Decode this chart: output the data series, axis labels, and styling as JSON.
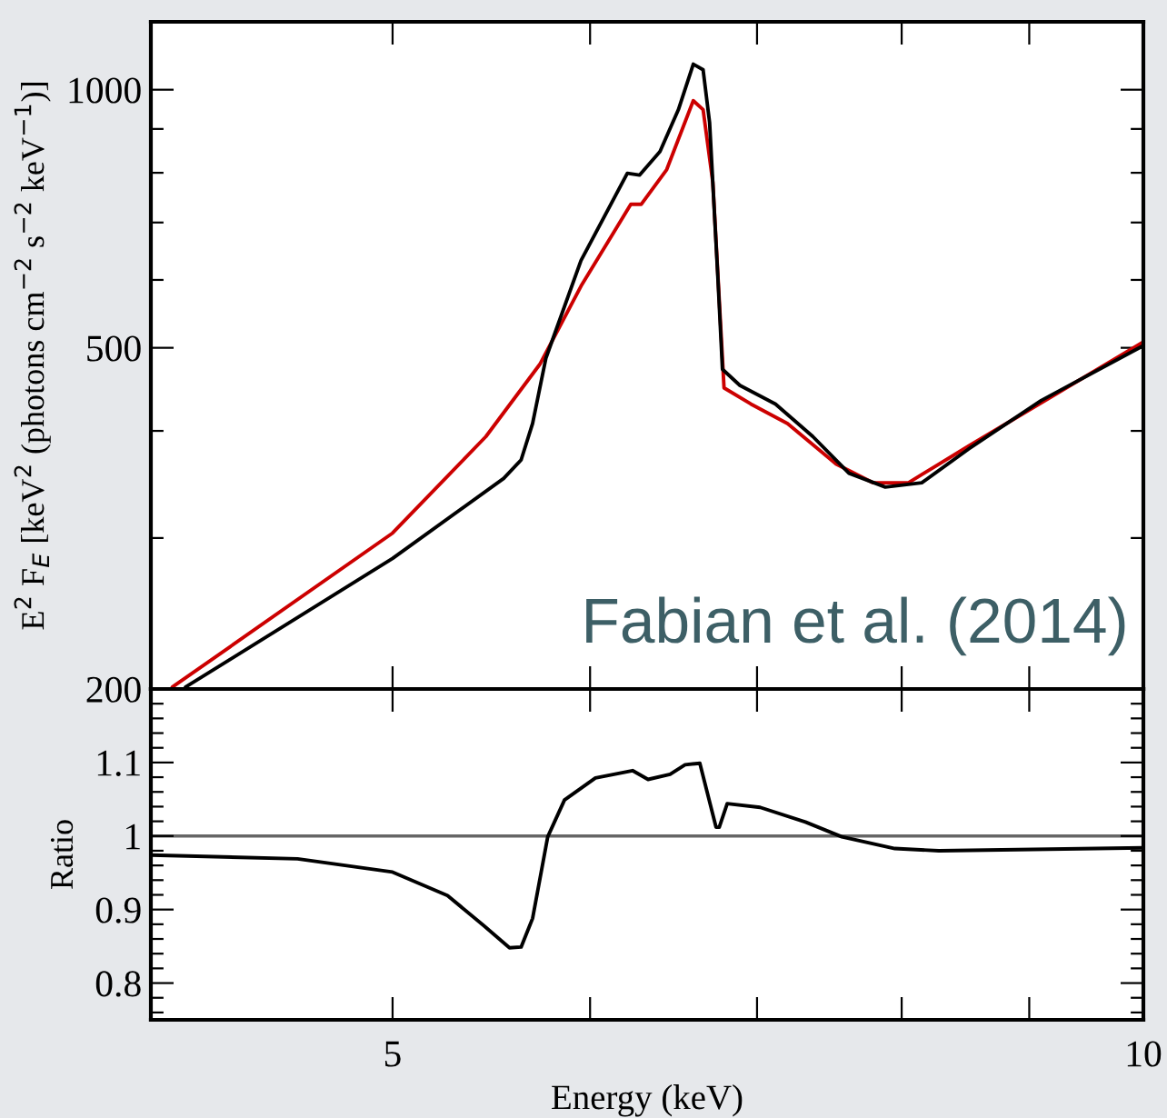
{
  "chart_data": [
    {
      "type": "line",
      "ylabel": "E$^{2}$ F$_{E}$ [keV$^{2}$ (photons cm$^{−2}$ s$^{−2}$ keV$^{−1}$)]",
      "log": "xy",
      "tick_labels": "y",
      "xlim": [
        4,
        10
      ],
      "ylim": [
        200,
        1200
      ],
      "xticks": [
        {
          "value": 5,
          "label": null
        },
        {
          "value": 6,
          "label": null
        },
        {
          "value": 7,
          "label": null
        },
        {
          "value": 8,
          "label": null
        },
        {
          "value": 9,
          "label": null
        },
        {
          "value": 10,
          "label": null
        }
      ],
      "yticks": [
        200,
        {
          "value": 300,
          "label": null
        },
        {
          "value": 400,
          "label": null
        },
        500,
        {
          "value": 600,
          "label": null
        },
        {
          "value": 700,
          "label": null
        },
        {
          "value": 800,
          "label": null
        },
        {
          "value": 900,
          "label": null
        },
        1000
      ],
      "annotations": [
        "Fabian et al. (2014)"
      ],
      "grid": false,
      "legend": false,
      "series": [
        {
          "color": "#cc0000",
          "x": [
            4.08,
            5.0,
            5.45,
            5.73,
            5.95,
            6.23,
            6.29,
            6.44,
            6.6,
            6.66,
            6.72,
            6.79,
            6.96,
            7.2,
            7.53,
            7.79,
            8.05,
            8.51,
            10
          ],
          "values": [
            201,
            304,
            394,
            479,
            590,
            735,
            735,
            807,
            971,
            948,
            780,
            449,
            430,
            408,
            366,
            348,
            348,
            384,
            508
          ]
        },
        {
          "color": "#000000",
          "x": [
            4.13,
            5.0,
            5.54,
            5.63,
            5.69,
            5.76,
            5.95,
            6.21,
            6.28,
            6.4,
            6.51,
            6.6,
            6.66,
            6.7,
            6.75,
            6.78,
            6.89,
            7.12,
            7.37,
            7.62,
            7.88,
            8.15,
            8.51,
            9.1,
            10
          ],
          "values": [
            201,
            284,
            352,
            370,
            408,
            486,
            632,
            799,
            795,
            847,
            948,
            1071,
            1055,
            916,
            611,
            472,
            452,
            430,
            394,
            357,
            344,
            348,
            381,
            434,
            503
          ]
        }
      ]
    },
    {
      "type": "line",
      "xlabel": "Energy (keV)",
      "ylabel": "Ratio",
      "log": "x",
      "xlim": [
        4,
        10
      ],
      "ylim": [
        0.75,
        1.2
      ],
      "xticks": [
        5,
        {
          "value": 6,
          "label": null
        },
        {
          "value": 7,
          "label": null
        },
        {
          "value": 8,
          "label": null
        },
        {
          "value": 9,
          "label": null
        },
        10
      ],
      "yticks": [
        {
          "value": 0.76,
          "label": null
        },
        {
          "value": 0.78,
          "label": null
        },
        0.8,
        {
          "value": 0.82,
          "label": null
        },
        {
          "value": 0.84,
          "label": null
        },
        {
          "value": 0.86,
          "label": null
        },
        {
          "value": 0.88,
          "label": null
        },
        0.9,
        {
          "value": 0.92,
          "label": null
        },
        {
          "value": 0.94,
          "label": null
        },
        {
          "value": 0.96,
          "label": null
        },
        {
          "value": 0.98,
          "label": null
        },
        1,
        {
          "value": 1.02,
          "label": null
        },
        {
          "value": 1.04,
          "label": null
        },
        {
          "value": 1.06,
          "label": null
        },
        {
          "value": 1.08,
          "label": null
        },
        1.1,
        {
          "value": 1.12,
          "label": null
        },
        {
          "value": 1.14,
          "label": null
        },
        {
          "value": 1.16,
          "label": null
        },
        {
          "value": 1.18,
          "label": null
        }
      ],
      "ref_lines": [
        {
          "axis": "y",
          "value": 1,
          "color": "#666666"
        }
      ],
      "grid": false,
      "legend": false,
      "series": [
        {
          "color": "#000000",
          "x": [
            4.0,
            4.58,
            5.0,
            5.26,
            5.44,
            5.57,
            5.63,
            5.69,
            5.77,
            5.86,
            6.03,
            6.24,
            6.33,
            6.46,
            6.55,
            6.64,
            6.74,
            6.76,
            6.81,
            7.02,
            7.32,
            7.57,
            7.95,
            8.28,
            10
          ],
          "values": [
            0.974,
            0.969,
            0.951,
            0.919,
            0.878,
            0.848,
            0.849,
            0.888,
            0.999,
            1.049,
            1.079,
            1.089,
            1.077,
            1.084,
            1.097,
            1.099,
            1.012,
            1.012,
            1.044,
            1.039,
            1.019,
            0.999,
            0.983,
            0.98,
            0.984
          ]
        }
      ]
    }
  ]
}
